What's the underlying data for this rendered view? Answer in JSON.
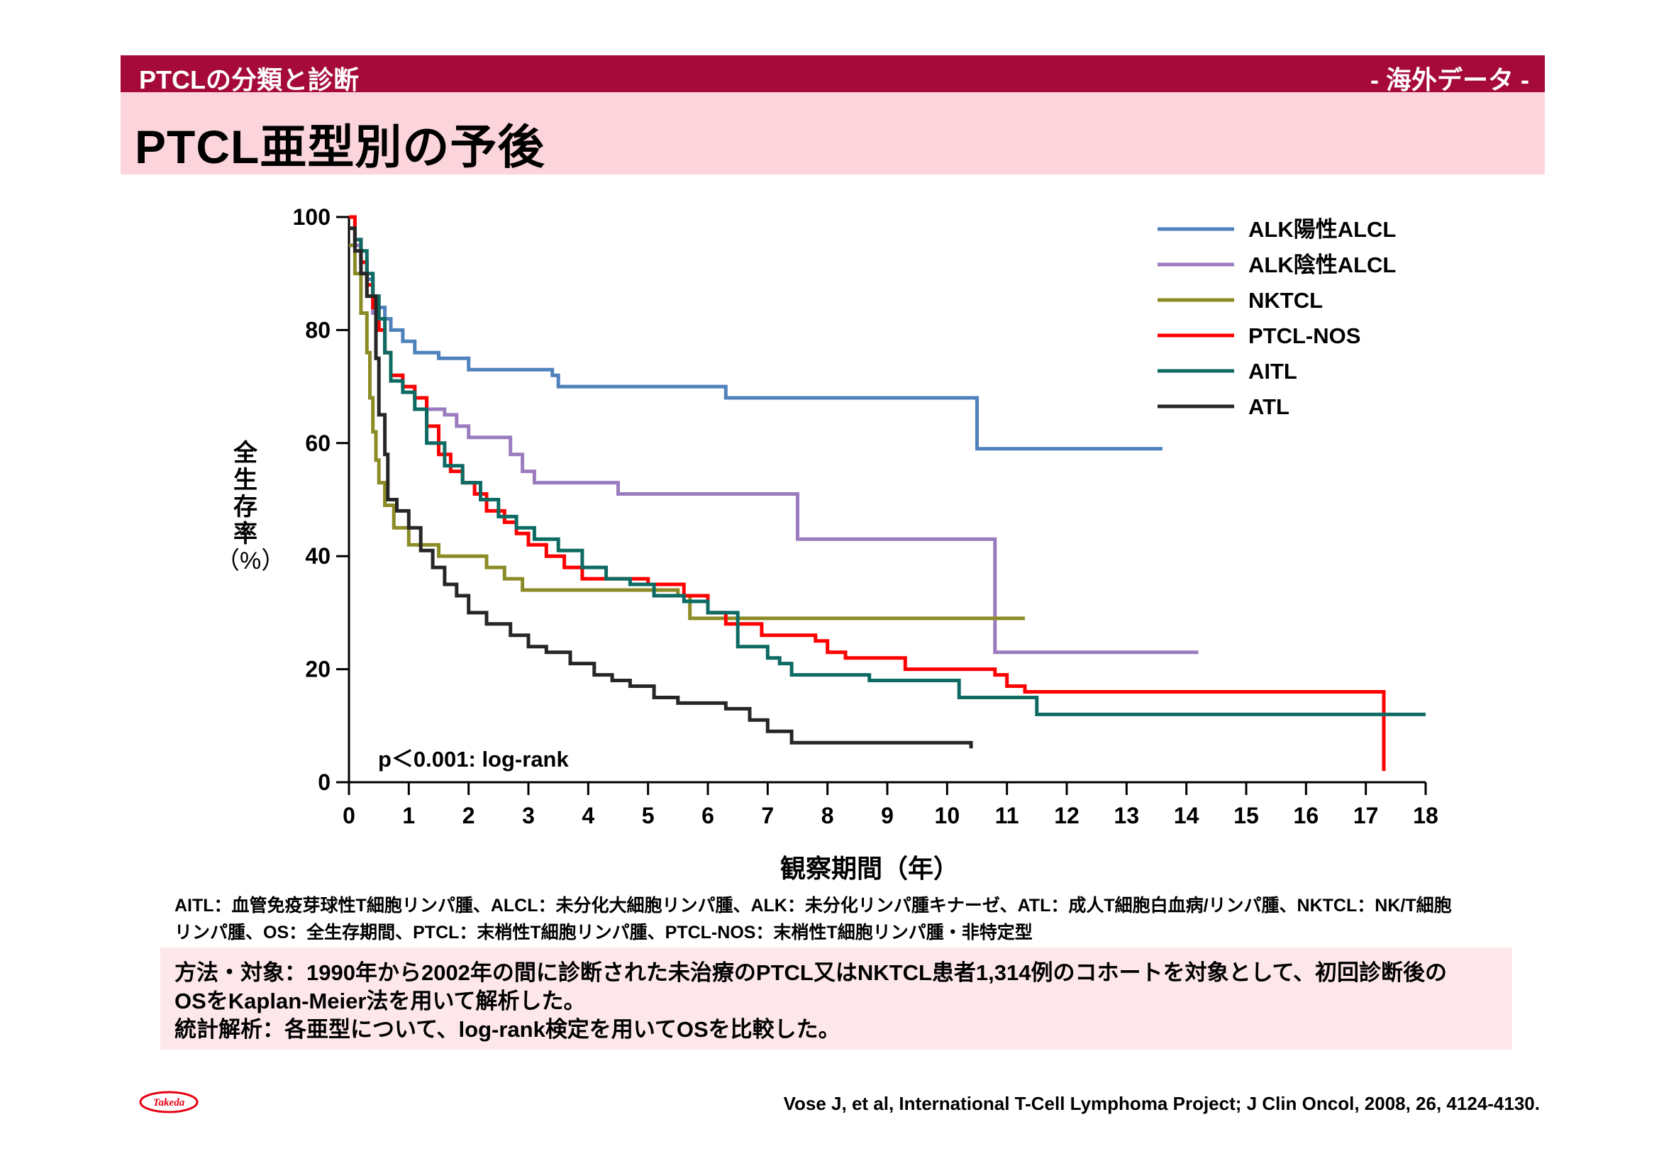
{
  "header": {
    "section": "PTCLの分類と診断",
    "tag": "- 海外データ -",
    "title": "PTCL亜型別の予後"
  },
  "chart_data": {
    "type": "line",
    "step": true,
    "xlabel": "観察期間（年）",
    "ylabel": [
      "全",
      "生",
      "存",
      "率",
      "（%）"
    ],
    "xlim": [
      0,
      18
    ],
    "ylim": [
      0,
      100
    ],
    "xticks": [
      0,
      1,
      2,
      3,
      4,
      5,
      6,
      7,
      8,
      9,
      10,
      11,
      12,
      13,
      14,
      15,
      16,
      17,
      18
    ],
    "yticks": [
      0,
      20,
      40,
      60,
      80,
      100
    ],
    "grid": false,
    "legend_position": "top-right",
    "annotation": "p＜0.001: log-rank",
    "series": [
      {
        "name": "ALK陽性ALCL",
        "color": "#4f81bd",
        "points": [
          [
            0,
            100
          ],
          [
            0.1,
            95
          ],
          [
            0.2,
            92
          ],
          [
            0.3,
            89
          ],
          [
            0.4,
            86
          ],
          [
            0.5,
            84
          ],
          [
            0.6,
            82
          ],
          [
            0.7,
            80
          ],
          [
            0.9,
            78
          ],
          [
            1.1,
            76
          ],
          [
            1.5,
            75
          ],
          [
            2.0,
            73
          ],
          [
            3.4,
            72
          ],
          [
            3.5,
            70
          ],
          [
            6.3,
            68
          ],
          [
            10.5,
            68
          ],
          [
            10.5,
            59
          ],
          [
            13.6,
            59
          ]
        ]
      },
      {
        "name": "ALK陰性ALCL",
        "color": "#9b7bbf",
        "points": [
          [
            0,
            100
          ],
          [
            0.1,
            95
          ],
          [
            0.2,
            90
          ],
          [
            0.3,
            86
          ],
          [
            0.4,
            83
          ],
          [
            0.5,
            80
          ],
          [
            0.6,
            76
          ],
          [
            0.7,
            72
          ],
          [
            0.9,
            70
          ],
          [
            1.1,
            68
          ],
          [
            1.3,
            66
          ],
          [
            1.6,
            65
          ],
          [
            1.8,
            63
          ],
          [
            2.0,
            61
          ],
          [
            2.7,
            58
          ],
          [
            2.9,
            55
          ],
          [
            3.1,
            53
          ],
          [
            4.5,
            51
          ],
          [
            7.5,
            51
          ],
          [
            7.5,
            43
          ],
          [
            10.8,
            43
          ],
          [
            10.8,
            23
          ],
          [
            14.2,
            23
          ]
        ]
      },
      {
        "name": "NKTCL",
        "color": "#8b8b26",
        "points": [
          [
            0,
            95
          ],
          [
            0.1,
            90
          ],
          [
            0.2,
            83
          ],
          [
            0.3,
            76
          ],
          [
            0.35,
            68
          ],
          [
            0.4,
            62
          ],
          [
            0.45,
            57
          ],
          [
            0.5,
            53
          ],
          [
            0.6,
            49
          ],
          [
            0.75,
            45
          ],
          [
            1.0,
            42
          ],
          [
            1.5,
            40
          ],
          [
            2.3,
            38
          ],
          [
            2.6,
            36
          ],
          [
            2.9,
            34
          ],
          [
            5.5,
            33
          ],
          [
            5.7,
            29
          ],
          [
            11.3,
            29
          ]
        ]
      },
      {
        "name": "PTCL-NOS",
        "color": "#ff0000",
        "points": [
          [
            0,
            100
          ],
          [
            0.1,
            96
          ],
          [
            0.2,
            92
          ],
          [
            0.3,
            88
          ],
          [
            0.4,
            84
          ],
          [
            0.5,
            80
          ],
          [
            0.6,
            76
          ],
          [
            0.7,
            72
          ],
          [
            0.9,
            70
          ],
          [
            1.1,
            68
          ],
          [
            1.3,
            63
          ],
          [
            1.5,
            58
          ],
          [
            1.7,
            55
          ],
          [
            1.9,
            53
          ],
          [
            2.1,
            51
          ],
          [
            2.3,
            48
          ],
          [
            2.6,
            46
          ],
          [
            2.8,
            44
          ],
          [
            3.0,
            42
          ],
          [
            3.3,
            40
          ],
          [
            3.6,
            38
          ],
          [
            3.9,
            36
          ],
          [
            5.0,
            35
          ],
          [
            5.6,
            33
          ],
          [
            6.0,
            30
          ],
          [
            6.3,
            28
          ],
          [
            6.9,
            26
          ],
          [
            7.8,
            25
          ],
          [
            8.0,
            23
          ],
          [
            8.3,
            22
          ],
          [
            9.3,
            20
          ],
          [
            10.8,
            19
          ],
          [
            11.0,
            17
          ],
          [
            11.3,
            16
          ],
          [
            17.3,
            16
          ],
          [
            17.3,
            2
          ]
        ]
      },
      {
        "name": "AITL",
        "color": "#0d6b63",
        "points": [
          [
            0,
            98
          ],
          [
            0.1,
            96
          ],
          [
            0.2,
            94
          ],
          [
            0.3,
            90
          ],
          [
            0.4,
            86
          ],
          [
            0.5,
            82
          ],
          [
            0.6,
            76
          ],
          [
            0.7,
            71
          ],
          [
            0.9,
            69
          ],
          [
            1.1,
            66
          ],
          [
            1.3,
            60
          ],
          [
            1.6,
            56
          ],
          [
            1.9,
            53
          ],
          [
            2.2,
            50
          ],
          [
            2.5,
            47
          ],
          [
            2.8,
            45
          ],
          [
            3.1,
            43
          ],
          [
            3.5,
            41
          ],
          [
            3.9,
            38
          ],
          [
            4.3,
            36
          ],
          [
            4.7,
            35
          ],
          [
            5.1,
            33
          ],
          [
            5.6,
            32
          ],
          [
            6.0,
            30
          ],
          [
            6.5,
            24
          ],
          [
            7.0,
            22
          ],
          [
            7.2,
            21
          ],
          [
            7.4,
            19
          ],
          [
            8.7,
            18
          ],
          [
            10.2,
            15
          ],
          [
            11.5,
            12
          ],
          [
            18.0,
            12
          ]
        ]
      },
      {
        "name": "ATL",
        "color": "#262626",
        "points": [
          [
            0,
            98
          ],
          [
            0.1,
            94
          ],
          [
            0.2,
            90
          ],
          [
            0.3,
            86
          ],
          [
            0.45,
            75
          ],
          [
            0.5,
            65
          ],
          [
            0.6,
            58
          ],
          [
            0.65,
            50
          ],
          [
            0.8,
            48
          ],
          [
            1.0,
            45
          ],
          [
            1.2,
            41
          ],
          [
            1.4,
            38
          ],
          [
            1.6,
            35
          ],
          [
            1.8,
            33
          ],
          [
            2.0,
            30
          ],
          [
            2.3,
            28
          ],
          [
            2.7,
            26
          ],
          [
            3.0,
            24
          ],
          [
            3.3,
            23
          ],
          [
            3.7,
            21
          ],
          [
            4.1,
            19
          ],
          [
            4.4,
            18
          ],
          [
            4.7,
            17
          ],
          [
            5.1,
            15
          ],
          [
            5.5,
            14
          ],
          [
            6.3,
            13
          ],
          [
            6.7,
            11
          ],
          [
            7.0,
            9
          ],
          [
            7.4,
            7
          ],
          [
            10.4,
            6
          ]
        ]
      }
    ]
  },
  "footnote": {
    "line1": "AITL：血管免疫芽球性T細胞リンパ腫、ALCL：未分化大細胞リンパ腫、ALK：未分化リンパ腫キナーゼ、ATL：成人T細胞白血病/リンパ腫、NKTCL：NK/T細胞",
    "line2": "リンパ腫、OS：全生存期間、PTCL：末梢性T細胞リンパ腫、PTCL-NOS：末梢性T細胞リンパ腫・非特定型"
  },
  "method": {
    "line1": "方法・対象：1990年から2002年の間に診断された未治療のPTCL又はNKTCL患者1,314例のコホートを対象として、初回診断後の",
    "line2": "OSをKaplan-Meier法を用いて解析した。",
    "line3": "統計解析：各亜型について、log-rank検定を用いてOSを比較した。"
  },
  "logo": {
    "text": "Takeda",
    "color": "#e60012"
  },
  "citation": "Vose J, et al, International T-Cell Lymphoma Project; J Clin Oncol, 2008, 26, 4124-4130."
}
